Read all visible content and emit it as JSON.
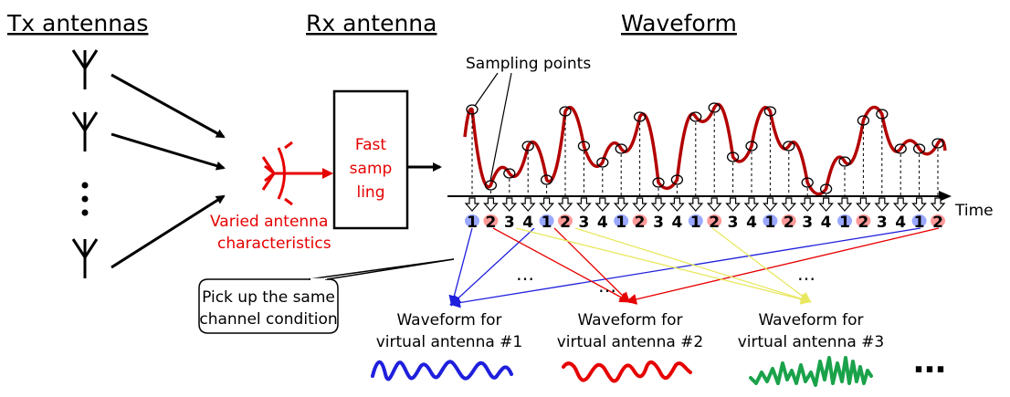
{
  "headers": {
    "tx": "Tx antennas",
    "rx": "Rx antenna",
    "wave": "Waveform"
  },
  "sampler": {
    "line1": "Fast",
    "line2": "samp",
    "line3": "ling"
  },
  "rx_note": {
    "line1": "Varied antenna",
    "line2": "characteristics"
  },
  "sampling_points_label": "Sampling points",
  "time_label": "Time",
  "sample_sequence": [
    "1",
    "2",
    "3",
    "4",
    "1",
    "2",
    "3",
    "4",
    "1",
    "2",
    "3",
    "4",
    "1",
    "2",
    "3",
    "4",
    "1",
    "2",
    "3",
    "4",
    "1",
    "2",
    "3",
    "4",
    "1",
    "2"
  ],
  "callout": {
    "line1": "Pick up the same",
    "line2": "channel condition"
  },
  "virtual_antennas": [
    {
      "line1": "Waveform for",
      "line2": "virtual antenna #1",
      "color": "#1f1fdd"
    },
    {
      "line1": "Waveform for",
      "line2": "virtual antenna #2",
      "color": "#e60000"
    },
    {
      "line1": "Waveform for",
      "line2": "virtual antenna #3",
      "color": "#1aa24a"
    }
  ],
  "ellipsis": "…",
  "big_ellipsis": "…",
  "colors": {
    "waveform": "#b30000",
    "antenna_1": "#1f1fdd",
    "antenna_2": "#e60000",
    "antenna_3": "#e8e860",
    "sample_1_fill": "#9aa8ff",
    "sample_2_fill": "#ff9a9a"
  }
}
